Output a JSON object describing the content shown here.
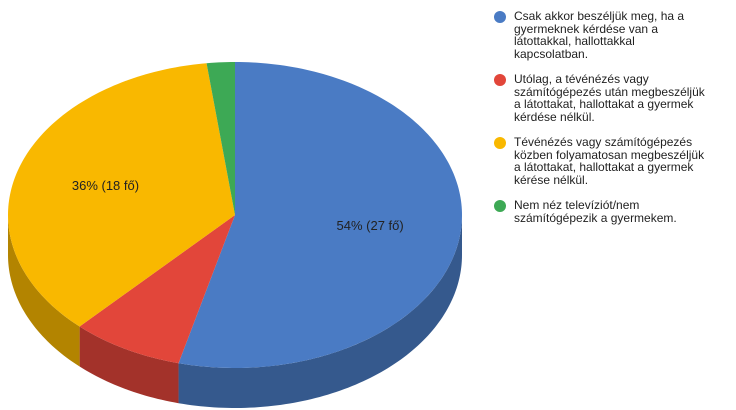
{
  "chart_data": {
    "type": "pie3d",
    "categories": [
      "Csak akkor beszéljük meg, ha a gyermeknek kérdése van a látottakkal, hallottakkal kapcsolatban.",
      "Utólag, a tévénézés vagy számítógépezés után megbeszéljük a látottakat, hallottakat a gyermek kérdése nélkül.",
      "Tévénézés vagy számítógépezés közben folyamatosan megbeszéljük a látottakat, hallottakat a gyermek kérése nélkül.",
      "Nem néz televíziót/nem számítógépezik a gyermekem."
    ],
    "values": [
      54,
      8,
      36,
      2
    ],
    "value_labels": [
      "54% (27 fő)",
      null,
      "36% (18 fő)",
      null
    ],
    "colors": [
      "#4a7bc4",
      "#e2463a",
      "#f9b800",
      "#3da955"
    ],
    "legend": "right"
  }
}
